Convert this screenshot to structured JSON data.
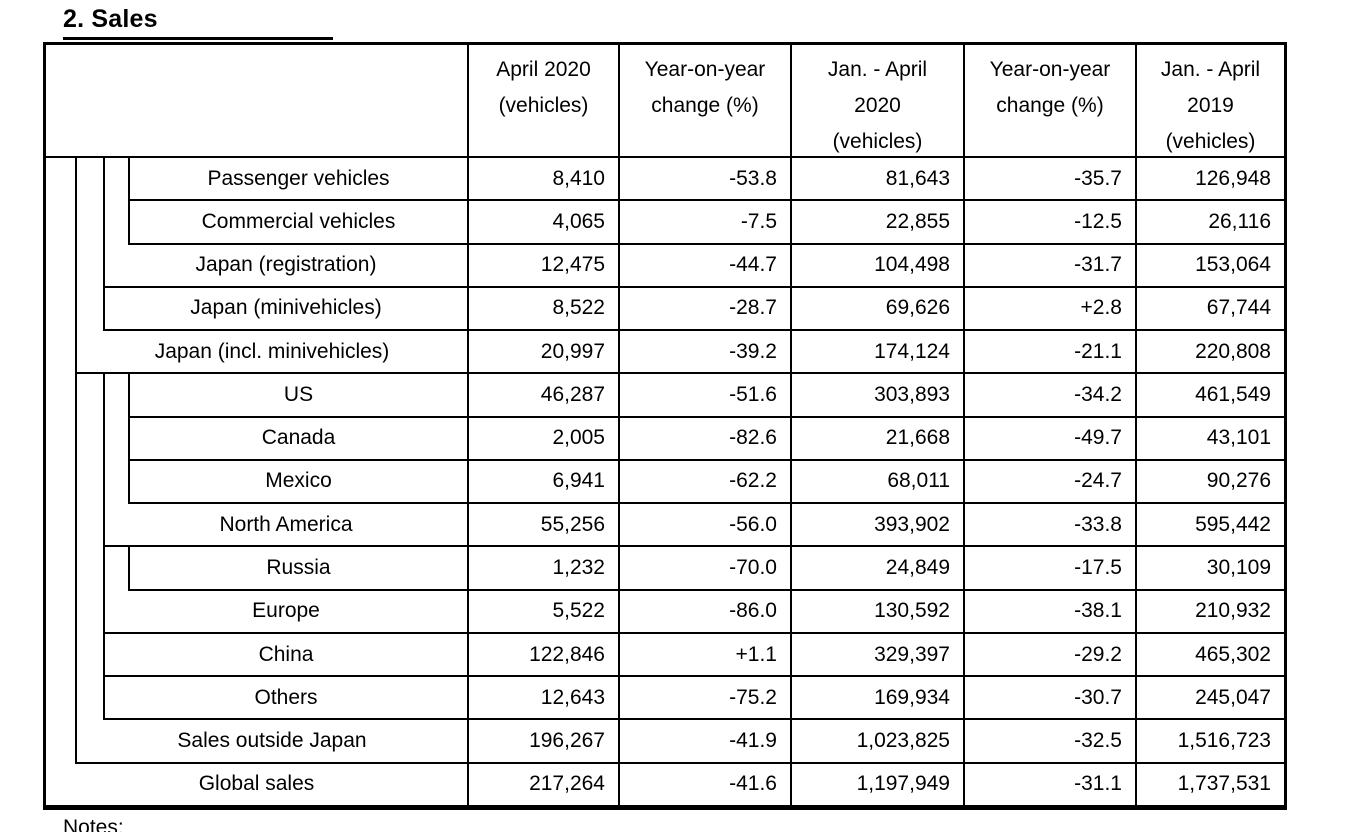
{
  "page": {
    "title": "2. Sales",
    "notes_label": "Notes:"
  },
  "colors": {
    "text": "#000000",
    "border": "#000000",
    "background": "#ffffff"
  },
  "table": {
    "headers": [
      "April 2020\n(vehicles)",
      "Year-on-year\nchange (%)",
      "Jan. - April\n2020\n(vehicles)",
      "Year-on-year\nchange (%)",
      "Jan. - April\n2019\n(vehicles)"
    ],
    "rows": [
      {
        "label": "Passenger vehicles",
        "level": 3,
        "values": [
          "8,410",
          "-53.8",
          "81,643",
          "-35.7",
          "126,948"
        ]
      },
      {
        "label": "Commercial vehicles",
        "level": 3,
        "values": [
          "4,065",
          "-7.5",
          "22,855",
          "-12.5",
          "26,116"
        ]
      },
      {
        "label": "Japan (registration)",
        "level": 2,
        "values": [
          "12,475",
          "-44.7",
          "104,498",
          "-31.7",
          "153,064"
        ]
      },
      {
        "label": "Japan (minivehicles)",
        "level": 2,
        "values": [
          "8,522",
          "-28.7",
          "69,626",
          "+2.8",
          "67,744"
        ]
      },
      {
        "label": "Japan (incl. minivehicles)",
        "level": 1,
        "values": [
          "20,997",
          "-39.2",
          "174,124",
          "-21.1",
          "220,808"
        ]
      },
      {
        "label": "US",
        "level": 3,
        "values": [
          "46,287",
          "-51.6",
          "303,893",
          "-34.2",
          "461,549"
        ]
      },
      {
        "label": "Canada",
        "level": 3,
        "values": [
          "2,005",
          "-82.6",
          "21,668",
          "-49.7",
          "43,101"
        ]
      },
      {
        "label": "Mexico",
        "level": 3,
        "values": [
          "6,941",
          "-62.2",
          "68,011",
          "-24.7",
          "90,276"
        ]
      },
      {
        "label": "North America",
        "level": 2,
        "values": [
          "55,256",
          "-56.0",
          "393,902",
          "-33.8",
          "595,442"
        ]
      },
      {
        "label": "Russia",
        "level": 3,
        "values": [
          "1,232",
          "-70.0",
          "24,849",
          "-17.5",
          "30,109"
        ]
      },
      {
        "label": "Europe",
        "level": 2,
        "values": [
          "5,522",
          "-86.0",
          "130,592",
          "-38.1",
          "210,932"
        ]
      },
      {
        "label": "China",
        "level": 2,
        "values": [
          "122,846",
          "+1.1",
          "329,397",
          "-29.2",
          "465,302"
        ]
      },
      {
        "label": "Others",
        "level": 2,
        "values": [
          "12,643",
          "-75.2",
          "169,934",
          "-30.7",
          "245,047"
        ]
      },
      {
        "label": "Sales outside Japan",
        "level": 1,
        "values": [
          "196,267",
          "-41.9",
          "1,023,825",
          "-32.5",
          "1,516,723"
        ]
      },
      {
        "label": "Global sales",
        "level": 0,
        "values": [
          "217,264",
          "-41.6",
          "1,197,949",
          "-31.1",
          "1,737,531"
        ]
      }
    ]
  }
}
